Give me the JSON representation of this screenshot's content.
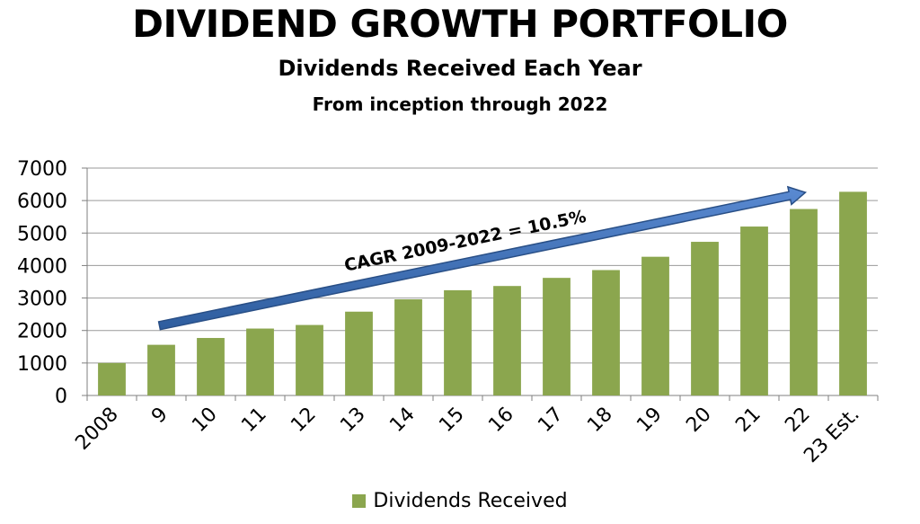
{
  "chart_data": {
    "type": "bar",
    "title": "DIVIDEND GROWTH PORTFOLIO",
    "subtitle": "Dividends Received Each Year",
    "subtitle2": "From inception through 2022",
    "categories": [
      "2008",
      "9",
      "10",
      "11",
      "12",
      "13",
      "14",
      "15",
      "16",
      "17",
      "18",
      "19",
      "20",
      "21",
      "22",
      "23 Est."
    ],
    "series": [
      {
        "name": "Dividends Received",
        "color": "#8BA64E",
        "values": [
          1000,
          1560,
          1770,
          2060,
          2170,
          2580,
          2960,
          3240,
          3370,
          3620,
          3860,
          4270,
          4730,
          5200,
          5740,
          6270
        ]
      }
    ],
    "ylim": [
      0,
      7000
    ],
    "yticks": [
      0,
      1000,
      2000,
      3000,
      4000,
      5000,
      6000,
      7000
    ],
    "grid": true,
    "legend": "bottom",
    "annotation": {
      "text": "CAGR 2009-2022 = 10.5%",
      "arrow_from": {
        "category": "9",
        "value": 2150
      },
      "arrow_to": {
        "category": "22",
        "value": 6250
      },
      "color": "#3F6FB5"
    }
  }
}
